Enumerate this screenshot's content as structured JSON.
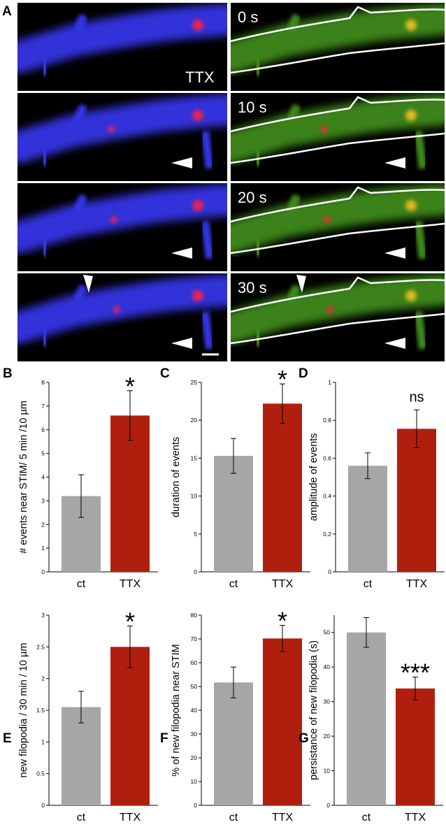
{
  "panel_a": {
    "letter": "A",
    "treatment_label": "TTX",
    "time_labels": [
      "0 s",
      "10 s",
      "20 s",
      "30 s"
    ],
    "channel_colors": {
      "blue": "#3535e6",
      "green": "#3f8a1c",
      "red": "#ff2040",
      "yellow": "#f2c020",
      "outline": "#ffffff"
    }
  },
  "colors": {
    "ct": "#a6a6a6",
    "TTX": "#b01f0e"
  },
  "chart_data": [
    {
      "panel": "B",
      "type": "bar",
      "categories": [
        "ct",
        "TTX"
      ],
      "values": [
        3.2,
        6.6
      ],
      "errors": [
        0.9,
        1.05
      ],
      "ylabel": "# events near STIM/ 5 min /10 µm",
      "ylim": [
        0,
        8
      ],
      "ticks": [
        "0",
        "1",
        "2",
        "3",
        "4",
        "5",
        "6",
        "7",
        "8"
      ],
      "significance": "*"
    },
    {
      "panel": "C",
      "type": "bar",
      "categories": [
        "ct",
        "TTX"
      ],
      "values": [
        15.3,
        22.2
      ],
      "errors": [
        2.3,
        2.6
      ],
      "ylabel": "duration of events",
      "ylim": [
        0,
        25
      ],
      "ticks": [
        "0",
        "5",
        "10",
        "15",
        "20",
        "25"
      ],
      "significance": "*"
    },
    {
      "panel": "D",
      "type": "bar",
      "categories": [
        "ct",
        "TTX"
      ],
      "values": [
        0.56,
        0.755
      ],
      "errors": [
        0.068,
        0.1
      ],
      "ylabel": "amplitude of events",
      "ylim": [
        0,
        1
      ],
      "ticks": [
        "0",
        "0.2",
        "0.4",
        "0.6",
        "0.8",
        "1"
      ],
      "significance": "ns"
    },
    {
      "panel": "E",
      "type": "bar",
      "categories": [
        "ct",
        "TTX"
      ],
      "values": [
        1.55,
        2.5
      ],
      "errors": [
        0.25,
        0.33
      ],
      "ylabel": "new filopodia / 30 min / 10 µm",
      "ylim": [
        0,
        3
      ],
      "ticks": [
        "0",
        "0.5",
        "1",
        "1.5",
        "2",
        "2.5",
        "3"
      ],
      "significance": "*"
    },
    {
      "panel": "F",
      "type": "bar",
      "categories": [
        "ct",
        "TTX"
      ],
      "values": [
        51.7,
        70.2
      ],
      "errors": [
        6.5,
        5.5
      ],
      "ylabel": "% of new filopodia near STIM",
      "ylim": [
        0,
        80
      ],
      "ticks": [
        "0",
        "10",
        "20",
        "30",
        "40",
        "50",
        "60",
        "70",
        "80"
      ],
      "significance": "*"
    },
    {
      "panel": "G",
      "type": "bar",
      "categories": [
        "ct",
        "TTX"
      ],
      "values": [
        50,
        33.8
      ],
      "errors": [
        4.3,
        3.3
      ],
      "ylabel": "persistance of new filopodia (s)",
      "ylim": [
        0,
        55
      ],
      "ticks": [
        "0",
        "10",
        "20",
        "30",
        "40",
        "50"
      ],
      "significance": "***"
    }
  ]
}
